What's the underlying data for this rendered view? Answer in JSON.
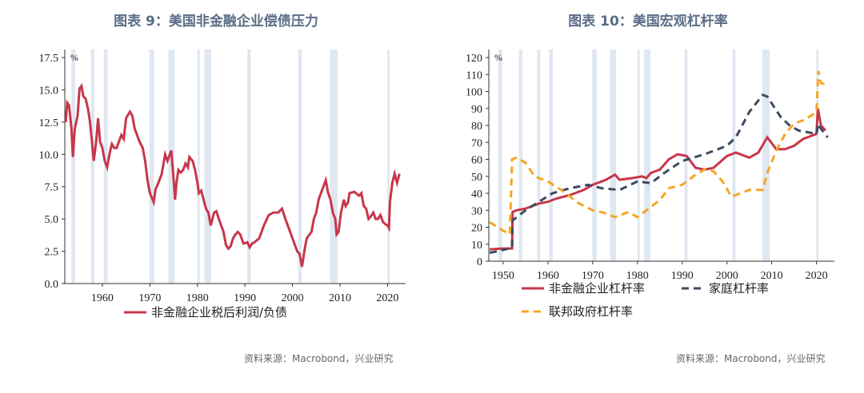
{
  "chart_data": [
    {
      "type": "line",
      "title": "图表 9：美国非金融企业偿债压力",
      "unit": "%",
      "source": "资料来源：Macrobond，兴业研究",
      "xlim": [
        1952.1,
        2023.8
      ],
      "ylim": [
        0,
        17.5
      ],
      "yticks": [
        "0.0",
        "2.5",
        "5.0",
        "7.5",
        "10.0",
        "12.5",
        "15.0",
        "17.5"
      ],
      "xticks": [
        "1960",
        "1970",
        "1980",
        "1990",
        "2000",
        "2010",
        "2020"
      ],
      "recessions": [
        [
          1953.5,
          1954.3
        ],
        [
          1957.6,
          1958.3
        ],
        [
          1960.3,
          1961.1
        ],
        [
          1969.9,
          1970.9
        ],
        [
          1973.9,
          1975.2
        ],
        [
          1980,
          1980.5
        ],
        [
          1981.5,
          1982.9
        ],
        [
          1990.5,
          1991.2
        ],
        [
          2001.2,
          2001.9
        ],
        [
          2007.9,
          2009.5
        ],
        [
          2020.1,
          2020.3
        ]
      ],
      "series": [
        {
          "name": "非金融企业税后利润/负债",
          "color": "#c8364a",
          "style": "solid",
          "points": [
            [
              1952.3,
              12.5
            ],
            [
              1952.6,
              14
            ],
            [
              1953,
              13.8
            ],
            [
              1953.5,
              12
            ],
            [
              1953.8,
              9.8
            ],
            [
              1954.2,
              12
            ],
            [
              1954.8,
              13
            ],
            [
              1955.2,
              15.1
            ],
            [
              1955.6,
              15.3
            ],
            [
              1956,
              14.5
            ],
            [
              1956.5,
              14.3
            ],
            [
              1957,
              13.5
            ],
            [
              1957.4,
              12.5
            ],
            [
              1957.8,
              11
            ],
            [
              1958.2,
              9.5
            ],
            [
              1958.7,
              11
            ],
            [
              1959.1,
              12.8
            ],
            [
              1959.5,
              11
            ],
            [
              1960,
              10.5
            ],
            [
              1960.5,
              9.5
            ],
            [
              1961,
              9
            ],
            [
              1961.5,
              10
            ],
            [
              1962,
              10.8
            ],
            [
              1962.5,
              10.5
            ],
            [
              1963,
              10.5
            ],
            [
              1963.5,
              11
            ],
            [
              1964,
              11.5
            ],
            [
              1964.5,
              11.2
            ],
            [
              1965,
              12.8
            ],
            [
              1965.8,
              13.3
            ],
            [
              1966.3,
              13
            ],
            [
              1966.8,
              12
            ],
            [
              1967.3,
              11.5
            ],
            [
              1967.8,
              11
            ],
            [
              1968.5,
              10.5
            ],
            [
              1969,
              9.5
            ],
            [
              1969.5,
              8
            ],
            [
              1970,
              7
            ],
            [
              1970.8,
              6.3
            ],
            [
              1971.2,
              7.3
            ],
            [
              1971.8,
              7.8
            ],
            [
              1972.5,
              8.5
            ],
            [
              1973.2,
              10
            ],
            [
              1973.7,
              9.5
            ],
            [
              1974.5,
              10.3
            ],
            [
              1975,
              8
            ],
            [
              1975.3,
              6.5
            ],
            [
              1975.6,
              7.8
            ],
            [
              1976,
              8.8
            ],
            [
              1976.5,
              8.6
            ],
            [
              1977,
              8.8
            ],
            [
              1977.5,
              9.3
            ],
            [
              1978,
              9
            ],
            [
              1978.3,
              9.8
            ],
            [
              1979,
              9.5
            ],
            [
              1979.5,
              8.8
            ],
            [
              1980,
              7.8
            ],
            [
              1980.3,
              7
            ],
            [
              1980.8,
              7.2
            ],
            [
              1981.3,
              6.5
            ],
            [
              1981.8,
              5.8
            ],
            [
              1982.3,
              5.5
            ],
            [
              1982.8,
              4.5
            ],
            [
              1983.5,
              5.5
            ],
            [
              1984,
              5.6
            ],
            [
              1984.5,
              5
            ],
            [
              1985,
              4.5
            ],
            [
              1985.5,
              4
            ],
            [
              1986,
              3
            ],
            [
              1986.5,
              2.7
            ],
            [
              1987,
              2.9
            ],
            [
              1987.5,
              3.5
            ],
            [
              1988,
              3.8
            ],
            [
              1988.5,
              4
            ],
            [
              1989,
              3.8
            ],
            [
              1989.7,
              3.1
            ],
            [
              1990.5,
              3.2
            ],
            [
              1991,
              2.8
            ],
            [
              1991.5,
              3.1
            ],
            [
              1992,
              3.2
            ],
            [
              1993,
              3.5
            ],
            [
              1994,
              4.5
            ],
            [
              1995,
              5.3
            ],
            [
              1996,
              5.5
            ],
            [
              1997,
              5.5
            ],
            [
              1997.8,
              5.8
            ],
            [
              1998.5,
              5
            ],
            [
              1999,
              4.5
            ],
            [
              2000,
              3.5
            ],
            [
              2001,
              2.5
            ],
            [
              2001.5,
              2.3
            ],
            [
              2002,
              1.3
            ],
            [
              2002.5,
              2.5
            ],
            [
              2003,
              3.5
            ],
            [
              2004,
              4
            ],
            [
              2004.5,
              5
            ],
            [
              2005,
              5.5
            ],
            [
              2005.5,
              6.5
            ],
            [
              2006,
              7
            ],
            [
              2006.5,
              7.5
            ],
            [
              2007,
              8
            ],
            [
              2007.5,
              7
            ],
            [
              2008,
              6.5
            ],
            [
              2008.5,
              5.5
            ],
            [
              2009,
              5
            ],
            [
              2009.3,
              3.8
            ],
            [
              2009.7,
              4
            ],
            [
              2010.2,
              5.5
            ],
            [
              2010.8,
              6.5
            ],
            [
              2011.2,
              6
            ],
            [
              2011.7,
              6.3
            ],
            [
              2012,
              7
            ],
            [
              2013,
              7.1
            ],
            [
              2014,
              6.8
            ],
            [
              2014.5,
              7
            ],
            [
              2015,
              6
            ],
            [
              2015.5,
              5.8
            ],
            [
              2016,
              5
            ],
            [
              2016.5,
              5.2
            ],
            [
              2017,
              5.5
            ],
            [
              2017.5,
              5
            ],
            [
              2018,
              5
            ],
            [
              2018.5,
              5.3
            ],
            [
              2019,
              4.8
            ],
            [
              2019.5,
              4.6
            ],
            [
              2020,
              4.5
            ],
            [
              2020.3,
              4.3
            ],
            [
              2020.5,
              6.3
            ],
            [
              2021,
              7.8
            ],
            [
              2021.5,
              8.5
            ],
            [
              2022,
              7.8
            ],
            [
              2022.5,
              8.5
            ]
          ]
        }
      ]
    },
    {
      "type": "line",
      "title": "图表 10：美国宏观杠杆率",
      "unit": "%",
      "source": "资料来源：Macrobond，兴业研究",
      "xlim": [
        1946.8,
        2024
      ],
      "ylim": [
        0,
        120
      ],
      "yticks": [
        "0",
        "10",
        "20",
        "30",
        "40",
        "50",
        "60",
        "70",
        "80",
        "90",
        "100",
        "110",
        "120"
      ],
      "xticks": [
        "1950",
        "1960",
        "1970",
        "1980",
        "1990",
        "2000",
        "2010",
        "2020"
      ],
      "recessions": [
        [
          1948.9,
          1949.8
        ],
        [
          1953.5,
          1954.3
        ],
        [
          1957.6,
          1958.3
        ],
        [
          1960.3,
          1961.1
        ],
        [
          1969.9,
          1970.9
        ],
        [
          1973.9,
          1975.2
        ],
        [
          1980,
          1980.5
        ],
        [
          1981.5,
          1982.9
        ],
        [
          1990.5,
          1991.2
        ],
        [
          2001.2,
          2001.9
        ],
        [
          2007.9,
          2009.5
        ],
        [
          2020.1,
          2020.3
        ]
      ],
      "series": [
        {
          "name": "非金融企业杠杆率",
          "color": "#c8364a",
          "style": "solid",
          "points": [
            [
              1947,
              7
            ],
            [
              1950,
              7.5
            ],
            [
              1952,
              7.5
            ],
            [
              1952.1,
              29
            ],
            [
              1953,
              30
            ],
            [
              1955,
              31
            ],
            [
              1958,
              34
            ],
            [
              1960,
              35
            ],
            [
              1962,
              37
            ],
            [
              1965,
              39
            ],
            [
              1968,
              42
            ],
            [
              1970,
              45
            ],
            [
              1973,
              48
            ],
            [
              1975,
              51
            ],
            [
              1976,
              48
            ],
            [
              1979,
              49
            ],
            [
              1981,
              50
            ],
            [
              1982,
              49
            ],
            [
              1983,
              52
            ],
            [
              1985,
              54
            ],
            [
              1987,
              60
            ],
            [
              1989,
              63
            ],
            [
              1991,
              62
            ],
            [
              1993,
              55
            ],
            [
              1995,
              54
            ],
            [
              1997,
              55
            ],
            [
              2000,
              62
            ],
            [
              2002,
              64
            ],
            [
              2005,
              61
            ],
            [
              2007,
              64
            ],
            [
              2009,
              73
            ],
            [
              2011,
              66
            ],
            [
              2013,
              66
            ],
            [
              2015,
              68
            ],
            [
              2017,
              72
            ],
            [
              2020,
              75
            ],
            [
              2020.3,
              90
            ],
            [
              2021,
              80
            ],
            [
              2022,
              77
            ]
          ]
        },
        {
          "name": "家庭杠杆率",
          "color": "#3d4b60",
          "style": "dash",
          "points": [
            [
              1947,
              5
            ],
            [
              1949,
              6
            ],
            [
              1952,
              8
            ],
            [
              1952.1,
              24
            ],
            [
              1955,
              30
            ],
            [
              1958,
              35
            ],
            [
              1961,
              40
            ],
            [
              1965,
              43
            ],
            [
              1969,
              45
            ],
            [
              1972,
              43
            ],
            [
              1976,
              42
            ],
            [
              1980,
              47
            ],
            [
              1983,
              46
            ],
            [
              1986,
              52
            ],
            [
              1990,
              59
            ],
            [
              1995,
              63
            ],
            [
              2000,
              68
            ],
            [
              2002,
              73
            ],
            [
              2005,
              88
            ],
            [
              2008,
              98
            ],
            [
              2009,
              97
            ],
            [
              2012,
              85
            ],
            [
              2014,
              80
            ],
            [
              2016,
              77
            ],
            [
              2018,
              76
            ],
            [
              2020,
              75
            ],
            [
              2020.4,
              81
            ],
            [
              2021,
              78
            ],
            [
              2022.5,
              73
            ]
          ]
        },
        {
          "name": "联邦政府杠杆率",
          "color": "#f5a623",
          "style": "dash",
          "points": [
            [
              1947,
              23
            ],
            [
              1950,
              18
            ],
            [
              1951.5,
              16
            ],
            [
              1952,
              60
            ],
            [
              1953,
              61
            ],
            [
              1955,
              58
            ],
            [
              1957,
              50
            ],
            [
              1960,
              47
            ],
            [
              1963,
              42
            ],
            [
              1967,
              34
            ],
            [
              1970,
              30
            ],
            [
              1972,
              29
            ],
            [
              1975,
              26
            ],
            [
              1978,
              29
            ],
            [
              1980,
              26
            ],
            [
              1982,
              30
            ],
            [
              1985,
              36
            ],
            [
              1987,
              43
            ],
            [
              1990,
              45
            ],
            [
              1993,
              51
            ],
            [
              1995,
              54
            ],
            [
              1997,
              53
            ],
            [
              1999,
              47
            ],
            [
              2001,
              38
            ],
            [
              2002,
              39
            ],
            [
              2005,
              42
            ],
            [
              2008,
              42
            ],
            [
              2009,
              52
            ],
            [
              2011,
              65
            ],
            [
              2013,
              75
            ],
            [
              2015,
              81
            ],
            [
              2017,
              83
            ],
            [
              2019,
              86
            ],
            [
              2020,
              88
            ],
            [
              2020.4,
              112
            ],
            [
              2021,
              105
            ],
            [
              2022.5,
              104
            ]
          ]
        }
      ]
    }
  ]
}
